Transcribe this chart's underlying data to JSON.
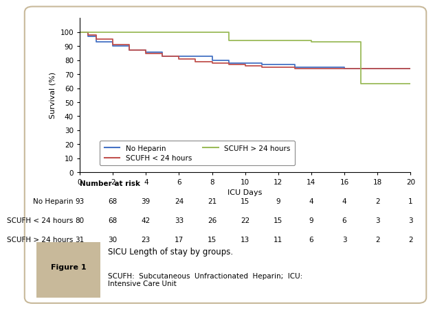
{
  "xlabel": "ICU Days",
  "ylabel": "Survival (%)",
  "xlim": [
    0,
    20
  ],
  "ylim": [
    0,
    110
  ],
  "yticks": [
    0,
    10,
    20,
    30,
    40,
    50,
    60,
    70,
    80,
    90,
    100
  ],
  "xticks": [
    0,
    2,
    4,
    6,
    8,
    10,
    12,
    14,
    16,
    18,
    20
  ],
  "no_heparin": {
    "color": "#4472C4",
    "label": "No Heparin",
    "x": [
      0,
      0.5,
      0.5,
      1,
      1,
      2,
      2,
      3,
      3,
      4,
      4,
      5,
      5,
      6,
      6,
      7,
      7,
      8,
      8,
      9,
      9,
      10,
      10,
      11,
      11,
      12,
      12,
      13,
      13,
      14,
      14,
      15,
      15,
      16,
      16,
      17,
      17,
      20
    ],
    "y": [
      100,
      100,
      97,
      97,
      93,
      93,
      90,
      90,
      87,
      87,
      86,
      86,
      83,
      83,
      83,
      83,
      83,
      83,
      80,
      80,
      78,
      78,
      78,
      78,
      77,
      77,
      77,
      77,
      75,
      75,
      75,
      75,
      75,
      75,
      74,
      74,
      74,
      74
    ]
  },
  "scufh_lt24": {
    "color": "#C0504D",
    "label": "SCUFH < 24 hours",
    "x": [
      0,
      0.5,
      0.5,
      1,
      1,
      2,
      2,
      3,
      3,
      4,
      4,
      5,
      5,
      6,
      6,
      7,
      7,
      8,
      8,
      9,
      9,
      10,
      10,
      11,
      11,
      12,
      12,
      13,
      13,
      14,
      14,
      15,
      15,
      16,
      16,
      17,
      17,
      20
    ],
    "y": [
      100,
      100,
      98,
      98,
      95,
      95,
      91,
      91,
      87,
      87,
      85,
      85,
      83,
      83,
      81,
      81,
      79,
      79,
      78,
      78,
      77,
      77,
      76,
      76,
      75,
      75,
      75,
      75,
      74,
      74,
      74,
      74,
      74,
      74,
      74,
      74,
      74,
      74
    ]
  },
  "scufh_gt24": {
    "color": "#9BBB59",
    "label": "SCUFH > 24 hours",
    "x": [
      0,
      9,
      9,
      14,
      14,
      17,
      17,
      18,
      18,
      20
    ],
    "y": [
      100,
      100,
      94,
      94,
      93,
      93,
      63,
      63,
      63,
      63
    ]
  },
  "risk_table": {
    "header": "Number at risk",
    "rows": [
      {
        "label": "No Heparin",
        "values": [
          93,
          68,
          39,
          24,
          21,
          15,
          9,
          4,
          4,
          2,
          1
        ]
      },
      {
        "label": "SCUFH < 24 hours",
        "values": [
          80,
          68,
          42,
          33,
          26,
          22,
          15,
          9,
          6,
          3,
          3
        ]
      },
      {
        "label": "SCUFH > 24 hours",
        "values": [
          31,
          30,
          23,
          17,
          15,
          13,
          11,
          6,
          3,
          2,
          2
        ]
      }
    ],
    "x_positions": [
      0,
      2,
      4,
      6,
      8,
      10,
      12,
      14,
      16,
      18,
      20
    ]
  },
  "figure_label": "Figure 1",
  "figure_caption": "SICU Length of stay by groups.",
  "figure_note": "SCUFH:  Subcutaneous  Unfractionated  Heparin;  ICU:\nIntensive Care Unit",
  "bg_color": "#FFFFFF",
  "border_color": "#C8B99A",
  "fig1_bg": "#C8B99A",
  "caption_bg": "#FFFFFF"
}
